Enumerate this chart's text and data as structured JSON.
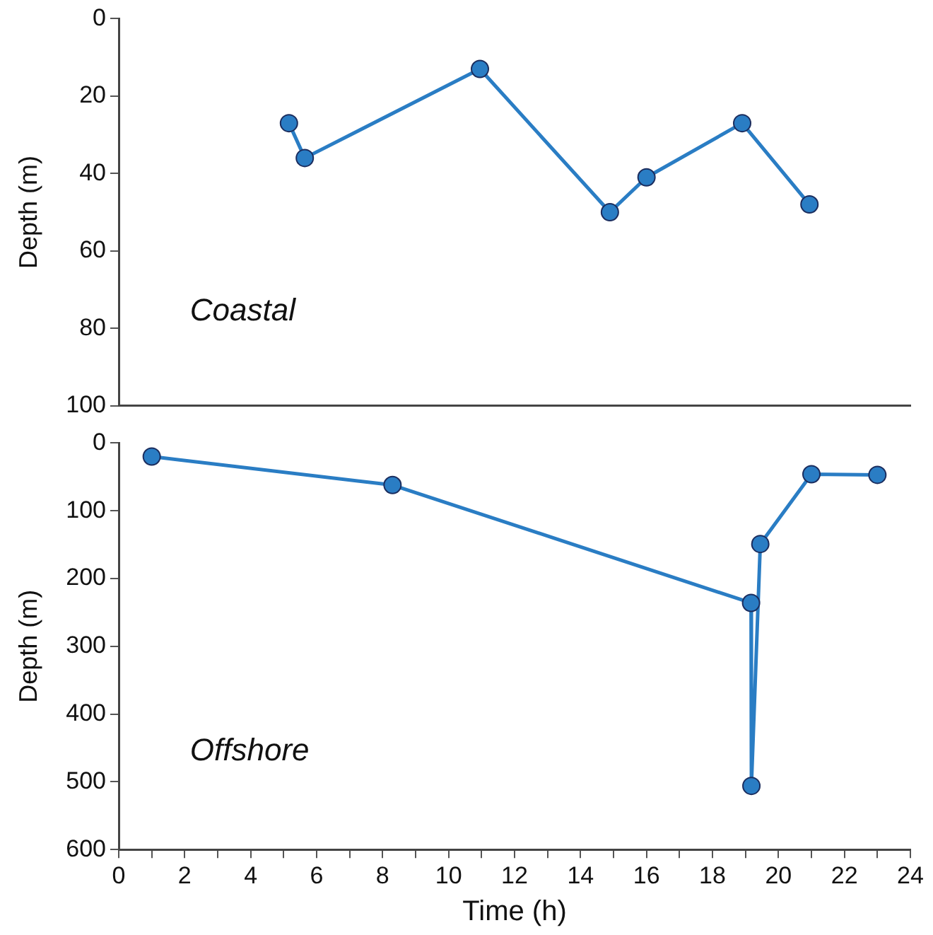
{
  "chart_data": [
    {
      "type": "line",
      "ylabel": "Depth (m)",
      "annotations": [
        "Coastal"
      ],
      "marker": "circle",
      "grid": false,
      "legend": false,
      "tick_labels": "y",
      "xlim": [
        0,
        24
      ],
      "ylim": [
        100,
        0
      ],
      "yticks": [
        0,
        20,
        40,
        60,
        80,
        100
      ],
      "series": [
        {
          "color": "#2a7dc4",
          "x": [
            5.16,
            5.64,
            10.95,
            14.89,
            16.0,
            18.9,
            20.94
          ],
          "values": [
            27,
            36,
            13,
            50,
            41,
            27,
            48
          ]
        }
      ]
    },
    {
      "type": "line",
      "xlabel": "Time (h)",
      "ylabel": "Depth (m)",
      "annotations": [
        "Offshore"
      ],
      "marker": "circle",
      "grid": false,
      "legend": false,
      "xlim": [
        0,
        24
      ],
      "ylim": [
        600,
        0
      ],
      "xticks": [
        0,
        {
          "value": 1,
          "label": null
        },
        2,
        {
          "value": 3,
          "label": null
        },
        4,
        {
          "value": 5,
          "label": null
        },
        6,
        {
          "value": 7,
          "label": null
        },
        8,
        {
          "value": 9,
          "label": null
        },
        10,
        {
          "value": 11,
          "label": null
        },
        12,
        {
          "value": 13,
          "label": null
        },
        14,
        {
          "value": 15,
          "label": null
        },
        16,
        {
          "value": 17,
          "label": null
        },
        18,
        {
          "value": 19,
          "label": null
        },
        20,
        {
          "value": 21,
          "label": null
        },
        22,
        {
          "value": 23,
          "label": null
        },
        24
      ],
      "yticks": [
        0,
        100,
        200,
        300,
        400,
        500,
        600
      ],
      "series": [
        {
          "color": "#2a7dc4",
          "x": [
            1,
            8.3,
            19.17,
            19.18,
            19.45,
            21,
            23
          ],
          "values": [
            20,
            62,
            236,
            506,
            149,
            46,
            47
          ]
        }
      ]
    }
  ]
}
